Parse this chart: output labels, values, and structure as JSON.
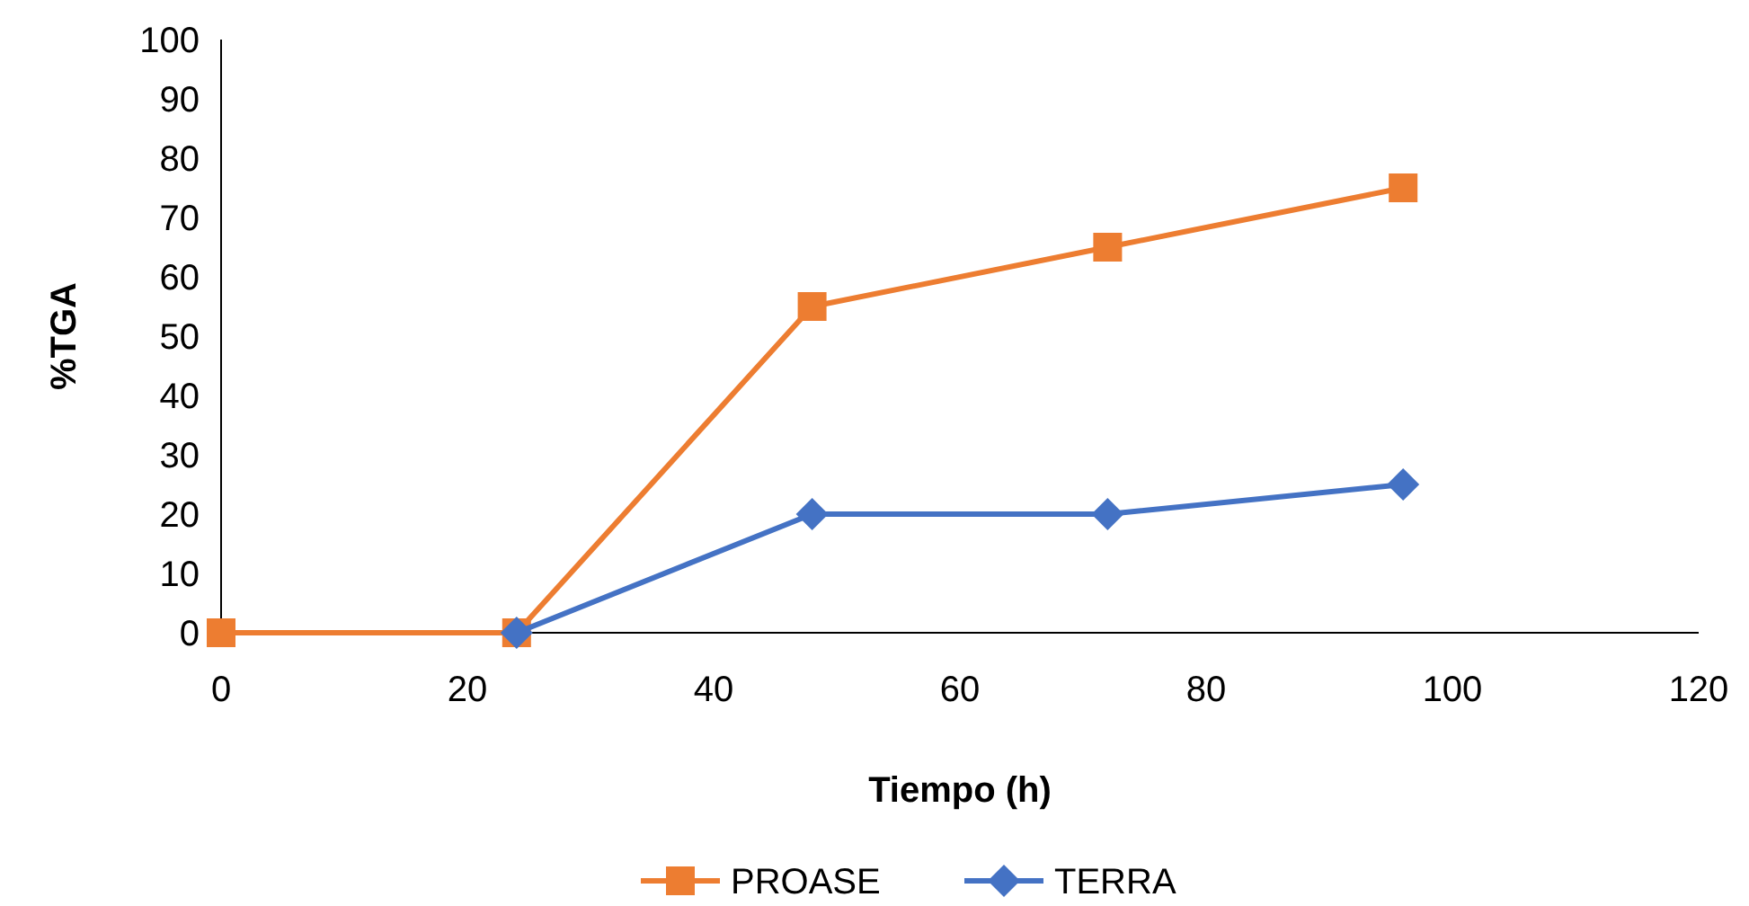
{
  "chart_data": {
    "type": "line",
    "xlabel": "Tiempo (h)",
    "ylabel": "%TGA",
    "xlim": [
      0,
      120
    ],
    "xticks": [
      0,
      20,
      40,
      60,
      80,
      100,
      120
    ],
    "ylim": [
      0,
      100
    ],
    "yticks": [
      0,
      10,
      20,
      30,
      40,
      50,
      60,
      70,
      80,
      90,
      100
    ],
    "grid": false,
    "legend": "bottom",
    "series": [
      {
        "name": "PROASE",
        "color": "#ed7d31",
        "marker": "square",
        "x": [
          0,
          24,
          48,
          72,
          96
        ],
        "values": [
          0,
          0,
          55,
          65,
          75
        ]
      },
      {
        "name": "TERRA",
        "color": "#4472c4",
        "marker": "diamond",
        "x": [
          24,
          48,
          72,
          96
        ],
        "values": [
          0,
          20,
          20,
          25
        ]
      }
    ]
  }
}
